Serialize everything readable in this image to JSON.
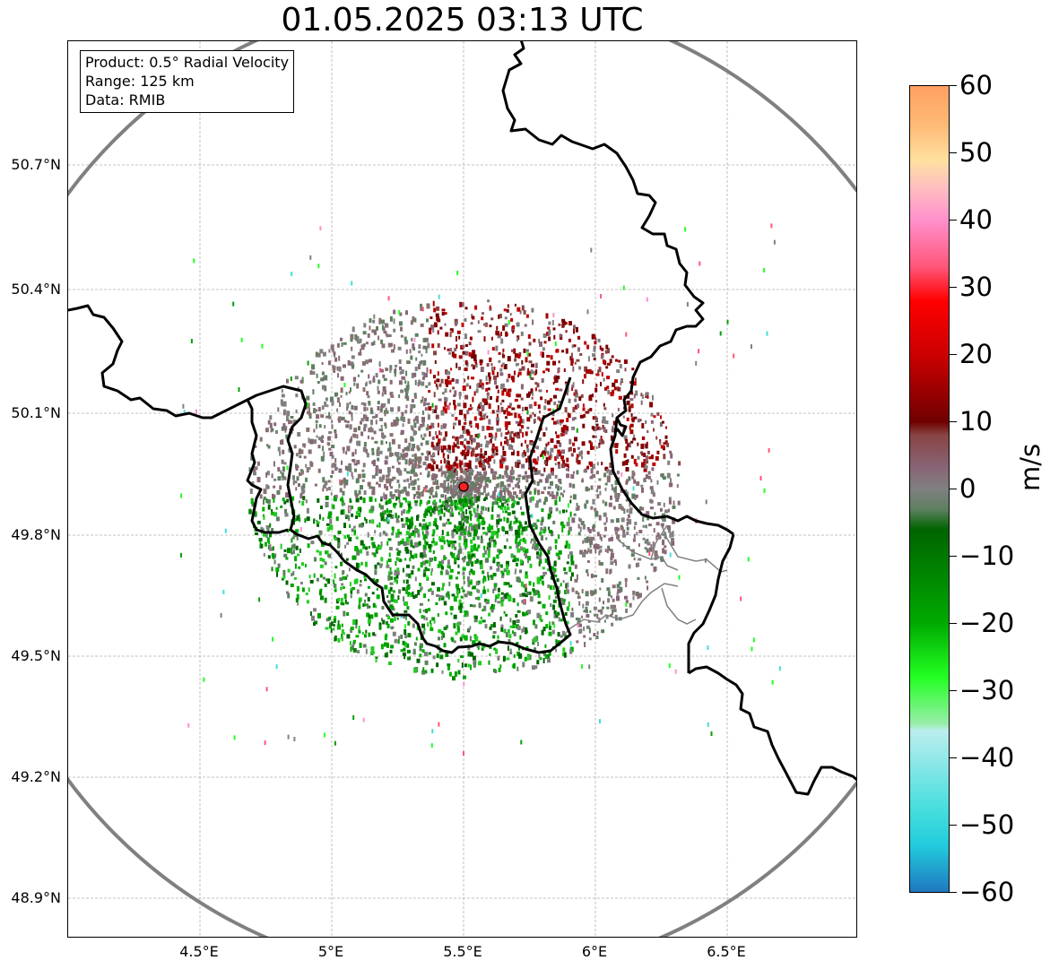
{
  "title": "01.05.2025 03:13 UTC",
  "info": {
    "product": "Product: 0.5° Radial Velocity",
    "range": "Range: 125 km",
    "data": "Data: RMIB"
  },
  "lat_labels": [
    "50.7°N",
    "50.4°N",
    "50.1°N",
    "49.8°N",
    "49.5°N",
    "49.2°N",
    "48.9°N"
  ],
  "lon_labels": [
    "4.5°E",
    "5°E",
    "5.5°E",
    "6°E",
    "6.5°E"
  ],
  "colorbar": {
    "unit": "m/s",
    "ticks": [
      "60",
      "50",
      "40",
      "30",
      "20",
      "10",
      "0",
      "−10",
      "−20",
      "−30",
      "−40",
      "−50",
      "−60"
    ],
    "min": -60,
    "max": 60,
    "stops": [
      {
        "v": 60,
        "c": "#ffa060"
      },
      {
        "v": 54,
        "c": "#ffbb77"
      },
      {
        "v": 49,
        "c": "#ffe0a0"
      },
      {
        "v": 45,
        "c": "#ffc0c0"
      },
      {
        "v": 40,
        "c": "#ff90cc"
      },
      {
        "v": 33,
        "c": "#ff5577"
      },
      {
        "v": 28,
        "c": "#ff0000"
      },
      {
        "v": 20,
        "c": "#cc0000"
      },
      {
        "v": 10,
        "c": "#700000"
      },
      {
        "v": 8,
        "c": "#884444"
      },
      {
        "v": 3,
        "c": "#886677"
      },
      {
        "v": 0,
        "c": "#808080"
      },
      {
        "v": -3,
        "c": "#5e8060"
      },
      {
        "v": -6,
        "c": "#006400"
      },
      {
        "v": -20,
        "c": "#00aa00"
      },
      {
        "v": -28,
        "c": "#22ff22"
      },
      {
        "v": -35,
        "c": "#99eeaa"
      },
      {
        "v": -36,
        "c": "#bbeeee"
      },
      {
        "v": -48,
        "c": "#44dddd"
      },
      {
        "v": -53,
        "c": "#22ccdd"
      },
      {
        "v": -60,
        "c": "#1f78c0"
      }
    ]
  },
  "radar_site": {
    "lat": 49.914,
    "lon": 5.505
  },
  "colors": {
    "range_ring": "#808080",
    "border": "#000000",
    "grid": "#b0b0b0",
    "outbound": "#cc0000",
    "inbound": "#009900"
  }
}
